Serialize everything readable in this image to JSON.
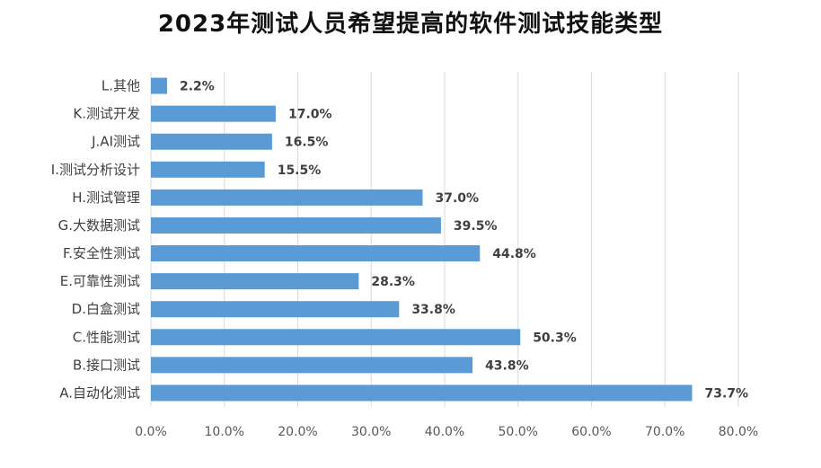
{
  "chart_data": {
    "type": "bar",
    "orientation": "horizontal",
    "title": "2023年测试人员希望提高的软件测试技能类型",
    "categories": [
      "A.自动化测试",
      "B.接口测试",
      "C.性能测试",
      "D.白盒测试",
      "E.可靠性测试",
      "F.安全性测试",
      "G.大数据测试",
      "H.测试管理",
      "I.测试分析设计",
      "J.AI测试",
      "K.测试开发",
      "L.其他"
    ],
    "values": [
      73.7,
      43.8,
      50.3,
      33.8,
      28.3,
      44.8,
      39.5,
      37.0,
      15.5,
      16.5,
      17.0,
      2.2
    ],
    "data_labels": [
      "73.7%",
      "43.8%",
      "50.3%",
      "33.8%",
      "28.3%",
      "44.8%",
      "39.5%",
      "37.0%",
      "15.5%",
      "16.5%",
      "17.0%",
      "2.2%"
    ],
    "xlim": [
      0,
      80
    ],
    "xticks": [
      0,
      10,
      20,
      30,
      40,
      50,
      60,
      70,
      80
    ],
    "xtick_labels": [
      "0.0%",
      "10.0%",
      "20.0%",
      "30.0%",
      "40.0%",
      "50.0%",
      "60.0%",
      "70.0%",
      "80.0%"
    ],
    "grid": "vertical",
    "legend": "none",
    "bar_color": "#5B9BD5",
    "grid_color": "#D9D9D9"
  }
}
